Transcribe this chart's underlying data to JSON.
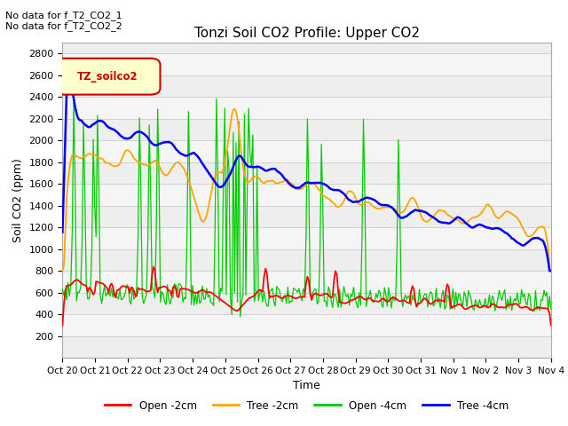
{
  "title": "Tonzi Soil CO2 Profile: Upper CO2",
  "xlabel": "Time",
  "ylabel": "Soil CO2 (ppm)",
  "ylim": [
    0,
    2900
  ],
  "yticks": [
    200,
    400,
    600,
    800,
    1000,
    1200,
    1400,
    1600,
    1800,
    2000,
    2200,
    2400,
    2600,
    2800
  ],
  "legend_labels": [
    "Open -2cm",
    "Tree -2cm",
    "Open -4cm",
    "Tree -4cm"
  ],
  "line_colors": [
    "#ff0000",
    "#ffa500",
    "#00cc00",
    "#0000ff"
  ],
  "annotation_text": "No data for f_T2_CO2_1\nNo data for f_T2_CO2_2",
  "legend_box_label": "TZ_soilco2",
  "legend_box_color": "#cc0000",
  "legend_box_bg": "#ffffcc",
  "num_points": 350,
  "xticklabels": [
    "Oct 20",
    "Oct 21",
    "Oct 22",
    "Oct 23",
    "Oct 24",
    "Oct 25",
    "Oct 26",
    "Oct 27",
    "Oct 28",
    "Oct 29",
    "Oct 30",
    "Oct 31",
    "Nov 1",
    "Nov 2",
    "Nov 3",
    "Nov 4"
  ]
}
